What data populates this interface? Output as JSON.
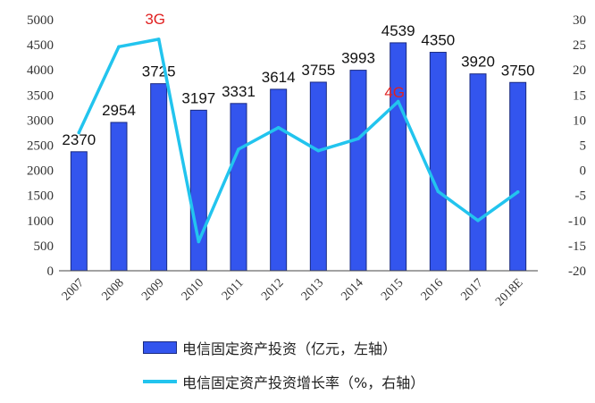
{
  "chart_data": {
    "type": "bar",
    "categories": [
      "2007",
      "2008",
      "2009",
      "2010",
      "2011",
      "2012",
      "2013",
      "2014",
      "2015",
      "2016",
      "2017",
      "2018E"
    ],
    "series": [
      {
        "name": "电信固定资产投资（亿元，左轴）",
        "type": "bar",
        "axis": "left",
        "values": [
          2370,
          2954,
          3725,
          3197,
          3331,
          3614,
          3755,
          3993,
          4539,
          4350,
          3920,
          3750
        ],
        "data_labels": [
          "2370",
          "2954",
          "3725",
          "3197",
          "3331",
          "3614",
          "3755",
          "3993",
          "4539",
          "4350",
          "3920",
          "3750"
        ]
      },
      {
        "name": "电信固定资产投资增长率（%，右轴）",
        "type": "line",
        "axis": "right",
        "values": [
          7.5,
          24.6,
          26.1,
          -14.2,
          4.2,
          8.5,
          3.9,
          6.3,
          13.7,
          -4.2,
          -10.0,
          -4.3
        ]
      }
    ],
    "y_left": {
      "min": 0,
      "max": 5000,
      "step": 500,
      "ticks": [
        "0",
        "500",
        "1000",
        "1500",
        "2000",
        "2500",
        "3000",
        "3500",
        "4000",
        "4500",
        "5000"
      ]
    },
    "y_right": {
      "min": -20,
      "max": 30,
      "step": 5,
      "ticks": [
        "-20",
        "-15",
        "-10",
        "-5",
        "0",
        "5",
        "10",
        "15",
        "20",
        "25",
        "30"
      ]
    },
    "annotations": [
      {
        "text": "3G",
        "category": "2009"
      },
      {
        "text": "4G",
        "category": "2015"
      }
    ],
    "colors": {
      "bar": "#3355ee",
      "bar_edge": "#1a2a80",
      "line": "#22c4ee",
      "annotation": "#e02020",
      "axis": "#444444"
    },
    "grid": false,
    "legend_position": "bottom"
  }
}
